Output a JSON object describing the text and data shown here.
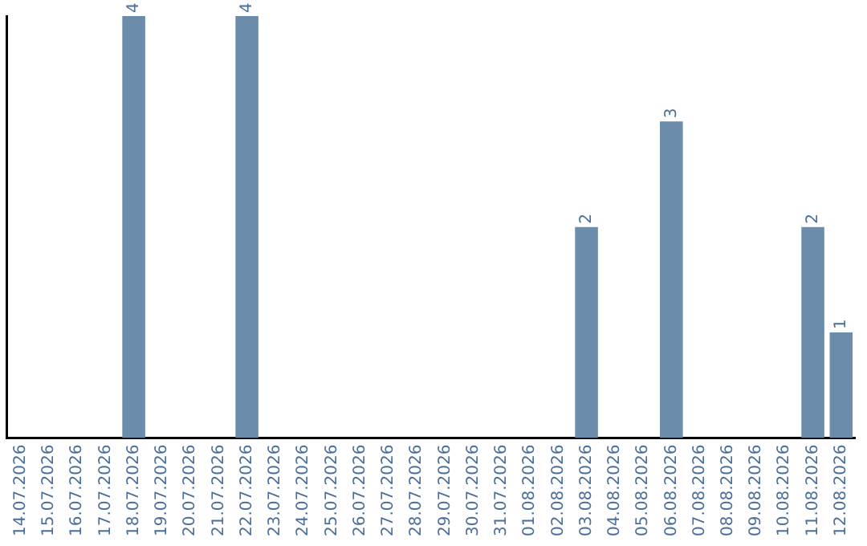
{
  "chart_data": {
    "type": "bar",
    "categories": [
      "14.07.2026",
      "15.07.2026",
      "16.07.2026",
      "17.07.2026",
      "18.07.2026",
      "19.07.2026",
      "20.07.2026",
      "21.07.2026",
      "22.07.2026",
      "23.07.2026",
      "24.07.2026",
      "25.07.2026",
      "26.07.2026",
      "27.07.2026",
      "28.07.2026",
      "29.07.2026",
      "30.07.2026",
      "31.07.2026",
      "01.08.2026",
      "02.08.2026",
      "03.08.2026",
      "04.08.2026",
      "05.08.2026",
      "06.08.2026",
      "07.08.2026",
      "08.08.2026",
      "09.08.2026",
      "10.08.2026",
      "11.08.2026",
      "12.08.2026"
    ],
    "values": [
      0,
      0,
      0,
      0,
      4,
      0,
      0,
      0,
      4,
      0,
      0,
      0,
      0,
      0,
      0,
      0,
      0,
      0,
      0,
      0,
      2,
      0,
      0,
      3,
      0,
      0,
      0,
      0,
      2,
      1
    ],
    "value_labels": [
      null,
      null,
      null,
      null,
      "4",
      null,
      null,
      null,
      "4",
      null,
      null,
      null,
      null,
      null,
      null,
      null,
      null,
      null,
      null,
      null,
      "2",
      null,
      null,
      "3",
      null,
      null,
      null,
      null,
      "2",
      "1"
    ],
    "color": "#6b8cab",
    "grid": false,
    "tick_labels": "x",
    "legend": false
  }
}
